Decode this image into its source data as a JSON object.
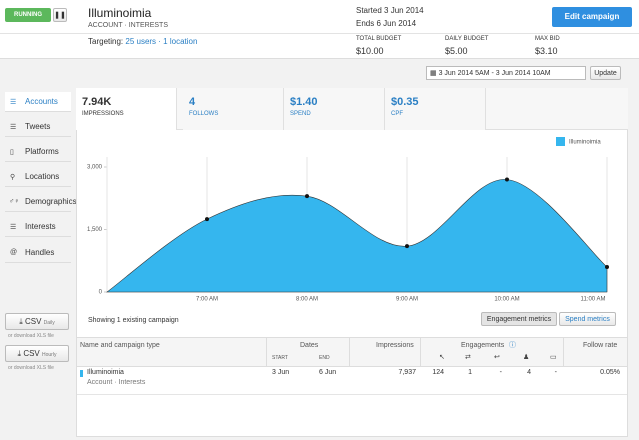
{
  "header": {
    "status": "RUNNING",
    "campaign_name": "Illuminoimia",
    "campaign_type": "ACCOUNT · INTERESTS",
    "started": "Started 3 Jun 2014",
    "ends": "Ends 6 Jun 2014",
    "edit_button": "Edit campaign"
  },
  "targeting": {
    "label": "Targeting:",
    "audience": "25 users · 1 location"
  },
  "budget": [
    {
      "label": "TOTAL BUDGET",
      "value": "$10.00"
    },
    {
      "label": "DAILY BUDGET",
      "value": "$5.00"
    },
    {
      "label": "MAX BID",
      "value": "$3.10"
    }
  ],
  "date_range": "3 Jun 2014 5AM - 3 Jun 2014 10AM",
  "update_button": "Update",
  "nav": [
    "Accounts",
    "Tweets",
    "Platforms",
    "Locations",
    "Demographics",
    "Interests",
    "Handles"
  ],
  "downloads": [
    {
      "button": "CSV",
      "period": "Daily",
      "note": "or download XLS file"
    },
    {
      "button": "CSV",
      "period": "Hourly",
      "note": "or download XLS file"
    }
  ],
  "tabs": [
    {
      "value": "7.94K",
      "label": "IMPRESSIONS"
    },
    {
      "value": "4",
      "label": "FOLLOWS"
    },
    {
      "value": "$1.40",
      "label": "SPEND"
    },
    {
      "value": "$0.35",
      "label": "CPF"
    }
  ],
  "chart_data": {
    "type": "area",
    "categories": [
      null,
      "7:00 AM",
      "8:00 AM",
      "9:00 AM",
      "10:00 AM",
      "11:00 AM"
    ],
    "series": [
      {
        "name": "Illuminoimia",
        "color": "#35b6ee",
        "values": [
          0,
          1750,
          2300,
          1100,
          2700,
          600
        ]
      }
    ],
    "ylim": [
      0,
      3000
    ],
    "yticks": [
      0,
      {
        "value": 1500,
        "label": "1,500"
      },
      {
        "value": 3000,
        "label": "3,000"
      }
    ],
    "grid": true,
    "legend": "top-right"
  },
  "summary": "Showing 1 existing campaign",
  "metric_buttons": [
    "Engagement metrics",
    "Spend metrics"
  ],
  "table": {
    "headers": {
      "name": "Name and campaign type",
      "dates": "Dates",
      "start": "START",
      "end": "END",
      "impressions": "Impressions",
      "engagements": "Engagements",
      "follow_rate": "Follow rate"
    },
    "rows": [
      {
        "name": "Illuminoimia",
        "type": "Account · Interests",
        "start": "3 Jun",
        "end": "6 Jun",
        "impressions": "7,937",
        "engagements": [
          "124",
          "1",
          "-",
          "4",
          "-"
        ],
        "follow_rate": "0.05%"
      }
    ]
  }
}
